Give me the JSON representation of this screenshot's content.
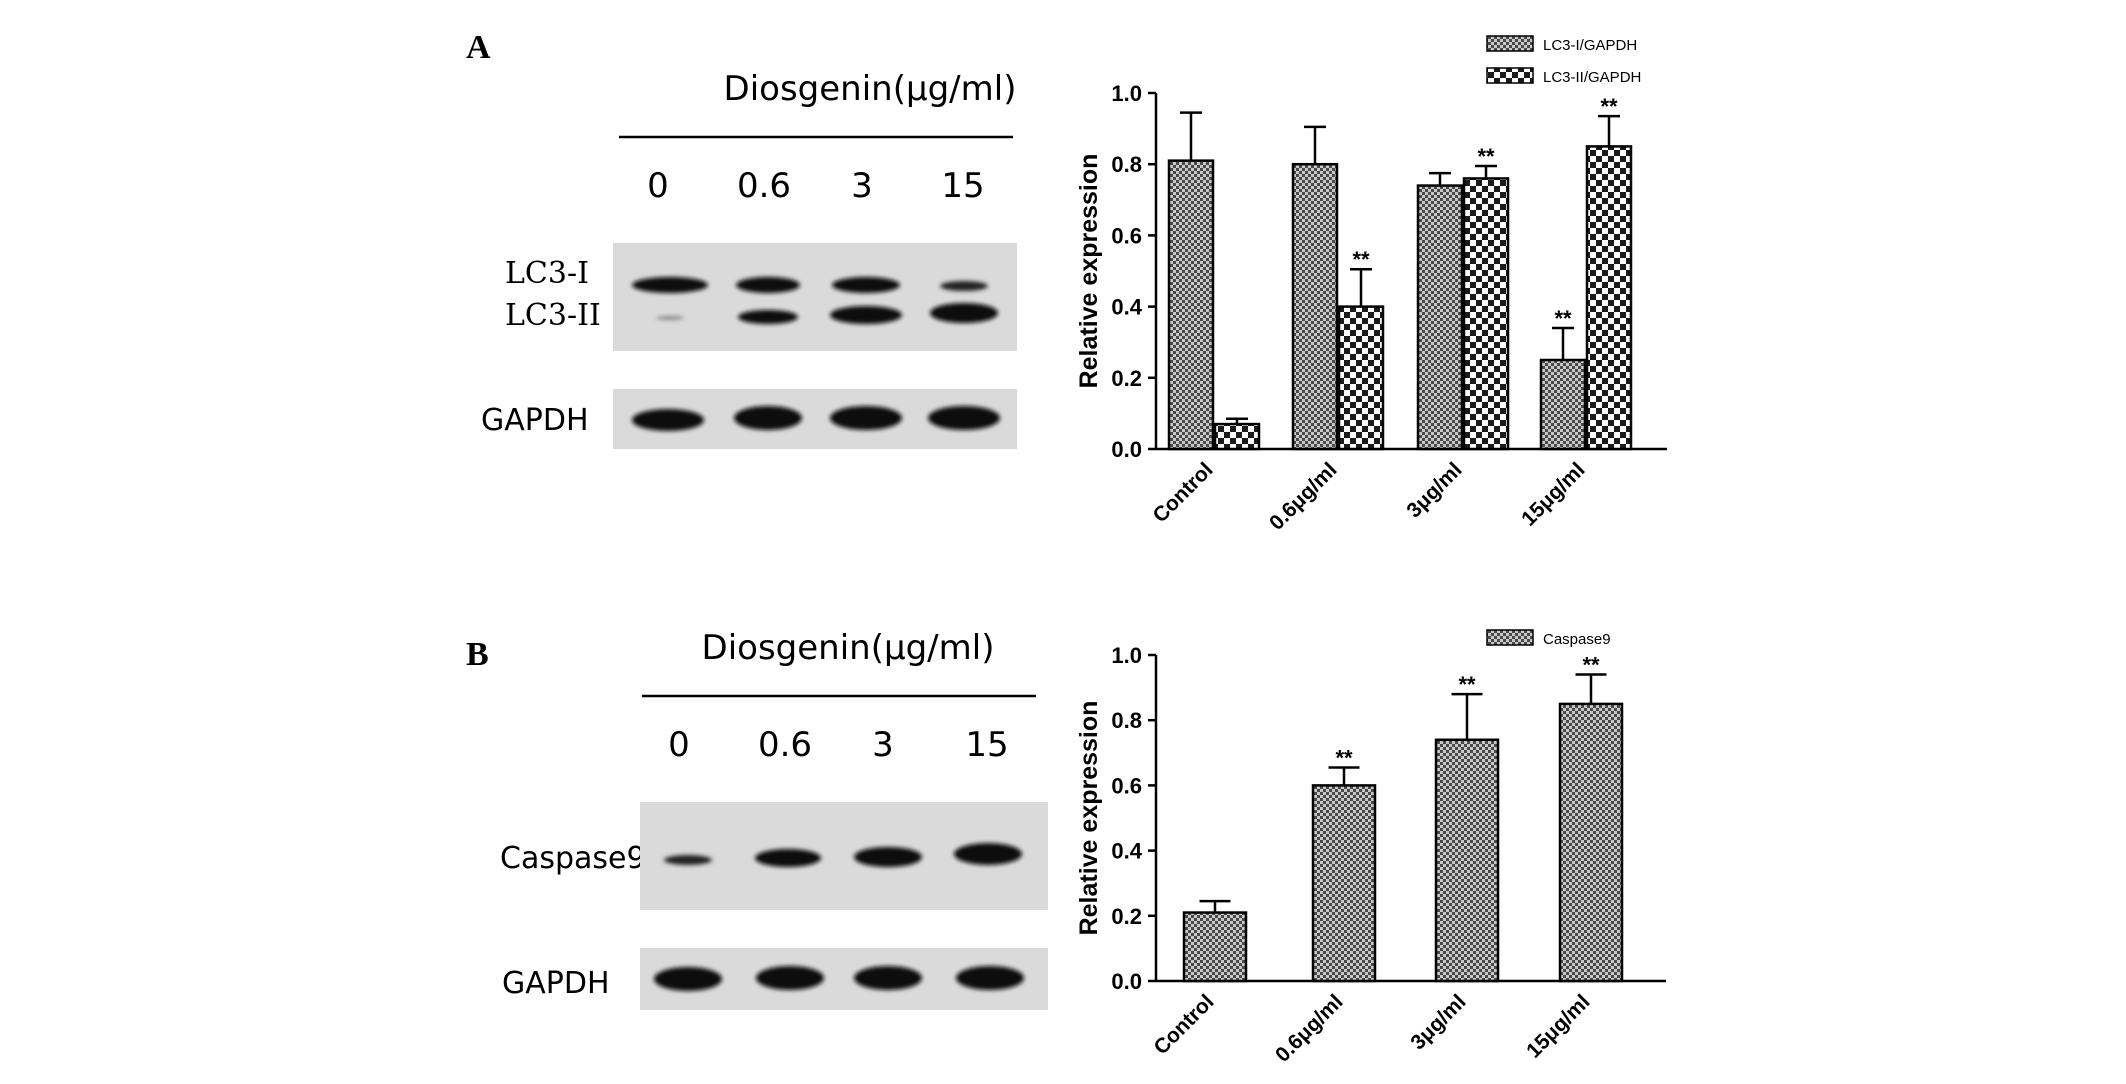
{
  "panels": {
    "a": {
      "letter": "A",
      "treatment_title": "Diosgenin(μg/ml)",
      "doses": [
        "0",
        "0.6",
        "3",
        "15"
      ],
      "blot_labels": {
        "lc3_i": "LC3-I",
        "lc3_ii": "LC3-II",
        "gapdh": "GAPDH"
      }
    },
    "b": {
      "letter": "B",
      "treatment_title": "Diosgenin(μg/ml)",
      "doses": [
        "0",
        "0.6",
        "3",
        "15"
      ],
      "blot_labels": {
        "caspase9": "Caspase9",
        "gapdh": "GAPDH"
      }
    }
  },
  "colors": {
    "ink": "#000000",
    "bar_fill_pattern": "checkered",
    "blot_bg": "#d9d9d9",
    "band": "#111111"
  },
  "chart_data": [
    {
      "type": "bar",
      "panel": "A",
      "categories": [
        "Control",
        "0.6μg/ml",
        "3μg/ml",
        "15μg/ml"
      ],
      "ylabel": "Relative expression",
      "xlabel": "",
      "ylim": [
        0,
        1.0
      ],
      "yticks": [
        "0.0",
        "0.2",
        "0.4",
        "0.6",
        "0.8",
        "1.0"
      ],
      "legend_position": "top-right",
      "series": [
        {
          "name": "LC3-I/GAPDH",
          "pattern": "fine-checker",
          "values": [
            0.81,
            0.8,
            0.74,
            0.25
          ],
          "errors": [
            0.135,
            0.105,
            0.035,
            0.09
          ],
          "annotations": [
            "",
            "",
            "",
            "**"
          ]
        },
        {
          "name": "LC3-II/GAPDH",
          "pattern": "coarse-checker",
          "values": [
            0.07,
            0.4,
            0.76,
            0.85
          ],
          "errors": [
            0.015,
            0.105,
            0.035,
            0.085
          ],
          "annotations": [
            "",
            "**",
            "**",
            "**"
          ]
        }
      ]
    },
    {
      "type": "bar",
      "panel": "B",
      "categories": [
        "Control",
        "0.6μg/ml",
        "3μg/ml",
        "15μg/ml"
      ],
      "ylabel": "Relative expression",
      "xlabel": "",
      "ylim": [
        0,
        1.0
      ],
      "yticks": [
        "0.0",
        "0.2",
        "0.4",
        "0.6",
        "0.8",
        "1.0"
      ],
      "legend_position": "top-right",
      "series": [
        {
          "name": "Caspase9",
          "pattern": "fine-checker",
          "values": [
            0.21,
            0.6,
            0.74,
            0.85
          ],
          "errors": [
            0.035,
            0.055,
            0.14,
            0.09
          ],
          "annotations": [
            "",
            "**",
            "**",
            "**"
          ]
        }
      ]
    }
  ]
}
